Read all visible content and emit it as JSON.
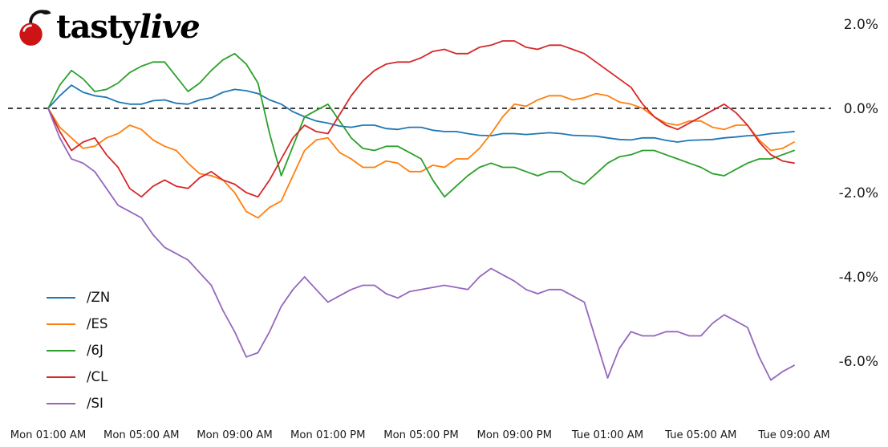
{
  "brand": {
    "logo_text_regular": "tasty",
    "logo_text_italic": "live",
    "cherry_color": "#cc1417",
    "stem_color": "#111111"
  },
  "chart_data": {
    "type": "line",
    "title": "",
    "xlabel": "",
    "ylabel": "",
    "x_start_hour": 0,
    "x_end_hour": 32,
    "x_tick_hours": [
      0,
      4,
      8,
      12,
      16,
      20,
      24,
      28,
      32
    ],
    "x_tick_labels": [
      "Mon 01:00 AM",
      "Mon 05:00 AM",
      "Mon 09:00 AM",
      "Mon 01:00 PM",
      "Mon 05:00 PM",
      "Mon 09:00 PM",
      "Tue 01:00 AM",
      "Tue 05:00 AM",
      "Tue 09:00 AM"
    ],
    "y_ticks": [
      {
        "label": "2.0%",
        "value": 2.0
      },
      {
        "label": "0.0%",
        "value": 0.0
      },
      {
        "label": "-2.0%",
        "value": -2.0
      },
      {
        "label": "-4.0%",
        "value": -4.0
      },
      {
        "label": "-6.0%",
        "value": -6.0
      }
    ],
    "ylim": [
      -7.0,
      2.3
    ],
    "zero_line": {
      "value": 0.0,
      "style": "dashed",
      "color": "#000000"
    },
    "grid": false,
    "legend_position": "lower-left",
    "sample_interval_hours": 0.5,
    "series": [
      {
        "name": "/ZN",
        "color": "#1f77b4",
        "values": [
          0.0,
          0.3,
          0.55,
          0.38,
          0.3,
          0.26,
          0.15,
          0.1,
          0.1,
          0.18,
          0.2,
          0.12,
          0.1,
          0.2,
          0.25,
          0.38,
          0.45,
          0.42,
          0.35,
          0.2,
          0.1,
          -0.08,
          -0.2,
          -0.3,
          -0.35,
          -0.42,
          -0.45,
          -0.4,
          -0.4,
          -0.48,
          -0.5,
          -0.45,
          -0.45,
          -0.52,
          -0.55,
          -0.55,
          -0.6,
          -0.64,
          -0.65,
          -0.6,
          -0.6,
          -0.62,
          -0.6,
          -0.58,
          -0.6,
          -0.64,
          -0.65,
          -0.66,
          -0.7,
          -0.74,
          -0.75,
          -0.7,
          -0.7,
          -0.76,
          -0.8,
          -0.76,
          -0.75,
          -0.74,
          -0.7,
          -0.68,
          -0.65,
          -0.64,
          -0.6,
          -0.58,
          -0.55
        ]
      },
      {
        "name": "/ES",
        "color": "#ff7f0e",
        "values": [
          0.0,
          -0.45,
          -0.7,
          -0.95,
          -0.9,
          -0.7,
          -0.6,
          -0.4,
          -0.5,
          -0.75,
          -0.9,
          -1.0,
          -1.3,
          -1.55,
          -1.6,
          -1.7,
          -2.0,
          -2.45,
          -2.6,
          -2.35,
          -2.2,
          -1.6,
          -1.0,
          -0.75,
          -0.7,
          -1.05,
          -1.2,
          -1.4,
          -1.4,
          -1.25,
          -1.3,
          -1.5,
          -1.5,
          -1.35,
          -1.4,
          -1.2,
          -1.2,
          -0.95,
          -0.6,
          -0.2,
          0.1,
          0.05,
          0.2,
          0.3,
          0.3,
          0.2,
          0.25,
          0.35,
          0.3,
          0.15,
          0.1,
          0.0,
          -0.2,
          -0.35,
          -0.4,
          -0.3,
          -0.3,
          -0.45,
          -0.5,
          -0.4,
          -0.4,
          -0.75,
          -1.0,
          -0.95,
          -0.8
        ]
      },
      {
        "name": "/6J",
        "color": "#2ca02c",
        "values": [
          0.0,
          0.55,
          0.9,
          0.7,
          0.4,
          0.45,
          0.6,
          0.85,
          1.0,
          1.1,
          1.1,
          0.75,
          0.4,
          0.6,
          0.9,
          1.15,
          1.3,
          1.05,
          0.6,
          -0.6,
          -1.6,
          -0.9,
          -0.2,
          -0.05,
          0.1,
          -0.3,
          -0.7,
          -0.95,
          -1.0,
          -0.9,
          -0.9,
          -1.05,
          -1.2,
          -1.7,
          -2.1,
          -1.85,
          -1.6,
          -1.4,
          -1.3,
          -1.4,
          -1.4,
          -1.5,
          -1.6,
          -1.5,
          -1.5,
          -1.7,
          -1.8,
          -1.55,
          -1.3,
          -1.15,
          -1.1,
          -1.0,
          -1.0,
          -1.1,
          -1.2,
          -1.3,
          -1.4,
          -1.55,
          -1.6,
          -1.45,
          -1.3,
          -1.2,
          -1.2,
          -1.1,
          -1.0
        ]
      },
      {
        "name": "/CL",
        "color": "#d62728",
        "values": [
          0.0,
          -0.55,
          -1.0,
          -0.8,
          -0.7,
          -1.1,
          -1.4,
          -1.9,
          -2.1,
          -1.85,
          -1.7,
          -1.85,
          -1.9,
          -1.65,
          -1.5,
          -1.7,
          -1.8,
          -2.0,
          -2.1,
          -1.7,
          -1.2,
          -0.7,
          -0.4,
          -0.55,
          -0.6,
          -0.15,
          0.3,
          0.65,
          0.9,
          1.05,
          1.1,
          1.1,
          1.2,
          1.35,
          1.4,
          1.3,
          1.3,
          1.45,
          1.5,
          1.6,
          1.6,
          1.45,
          1.4,
          1.5,
          1.5,
          1.4,
          1.3,
          1.1,
          0.9,
          0.7,
          0.5,
          0.1,
          -0.2,
          -0.4,
          -0.5,
          -0.35,
          -0.2,
          -0.05,
          0.1,
          -0.1,
          -0.4,
          -0.8,
          -1.1,
          -1.25,
          -1.3
        ]
      },
      {
        "name": "/SI",
        "color": "#9467bd",
        "values": [
          0.0,
          -0.7,
          -1.2,
          -1.3,
          -1.5,
          -1.9,
          -2.3,
          -2.45,
          -2.6,
          -3.0,
          -3.3,
          -3.45,
          -3.6,
          -3.9,
          -4.2,
          -4.8,
          -5.3,
          -5.9,
          -5.8,
          -5.3,
          -4.7,
          -4.3,
          -4.0,
          -4.3,
          -4.6,
          -4.45,
          -4.3,
          -4.2,
          -4.2,
          -4.4,
          -4.5,
          -4.35,
          -4.3,
          -4.25,
          -4.2,
          -4.25,
          -4.3,
          -4.0,
          -3.8,
          -3.95,
          -4.1,
          -4.3,
          -4.4,
          -4.3,
          -4.3,
          -4.45,
          -4.6,
          -5.5,
          -6.4,
          -5.7,
          -5.3,
          -5.4,
          -5.4,
          -5.3,
          -5.3,
          -5.4,
          -5.4,
          -5.1,
          -4.9,
          -5.05,
          -5.2,
          -5.9,
          -6.45,
          -6.25,
          -6.1
        ]
      }
    ]
  }
}
